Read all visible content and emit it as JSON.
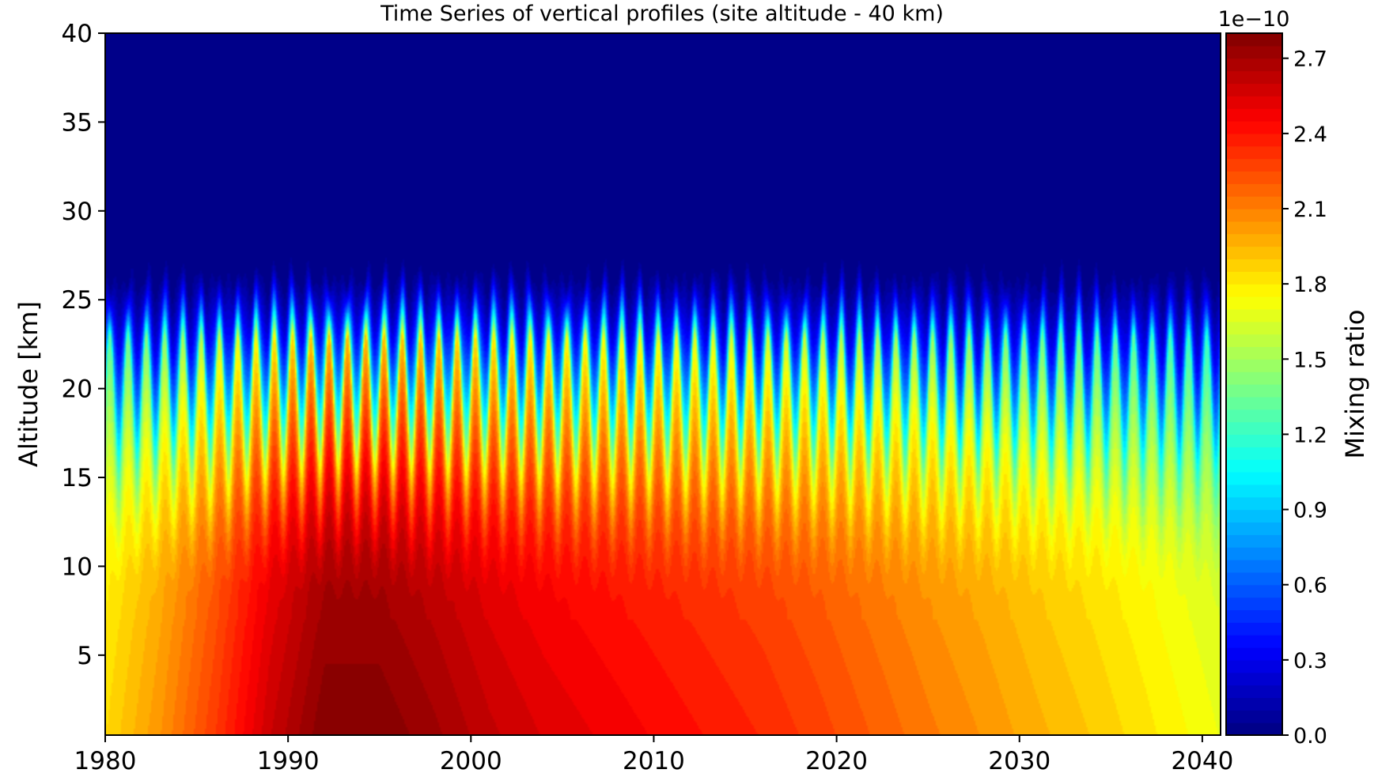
{
  "chart_data": {
    "type": "heatmap",
    "title": "Time Series of vertical profiles (site altitude - 40 km)",
    "xlabel": "",
    "ylabel": "Altitude [km]",
    "colorbar_label": "Mixing ratio",
    "colorbar_offset_text": "1e−10",
    "colormap": "jet",
    "xlim": [
      1980,
      2041
    ],
    "ylim": [
      0.5,
      40
    ],
    "zlim": [
      0,
      2.8
    ],
    "z_scale_exponent": -10,
    "x_ticks": [
      "1980",
      "1990",
      "2000",
      "2010",
      "2020",
      "2030",
      "2040"
    ],
    "y_ticks": [
      "5",
      "10",
      "15",
      "20",
      "25",
      "30",
      "35",
      "40"
    ],
    "colorbar_ticks": [
      "0.0",
      "0.3",
      "0.6",
      "0.9",
      "1.2",
      "1.5",
      "1.8",
      "2.1",
      "2.4",
      "2.7"
    ],
    "seasonal_cycle": "annual",
    "surface_trend": {
      "years": [
        1980,
        1983,
        1986,
        1989,
        1992,
        1995,
        1998,
        2001,
        2004,
        2007,
        2010,
        2013,
        2016,
        2019,
        2022,
        2025,
        2028,
        2031,
        2034,
        2037,
        2041
      ],
      "values": [
        1.85,
        2.05,
        2.3,
        2.6,
        2.8,
        2.8,
        2.72,
        2.62,
        2.55,
        2.5,
        2.45,
        2.4,
        2.35,
        2.28,
        2.2,
        2.12,
        2.05,
        1.97,
        1.9,
        1.82,
        1.7
      ]
    },
    "profile_decay_altitudes_km": {
      "tropopause_min": 15,
      "tropopause_max": 23,
      "top_of_signal": 27
    }
  }
}
